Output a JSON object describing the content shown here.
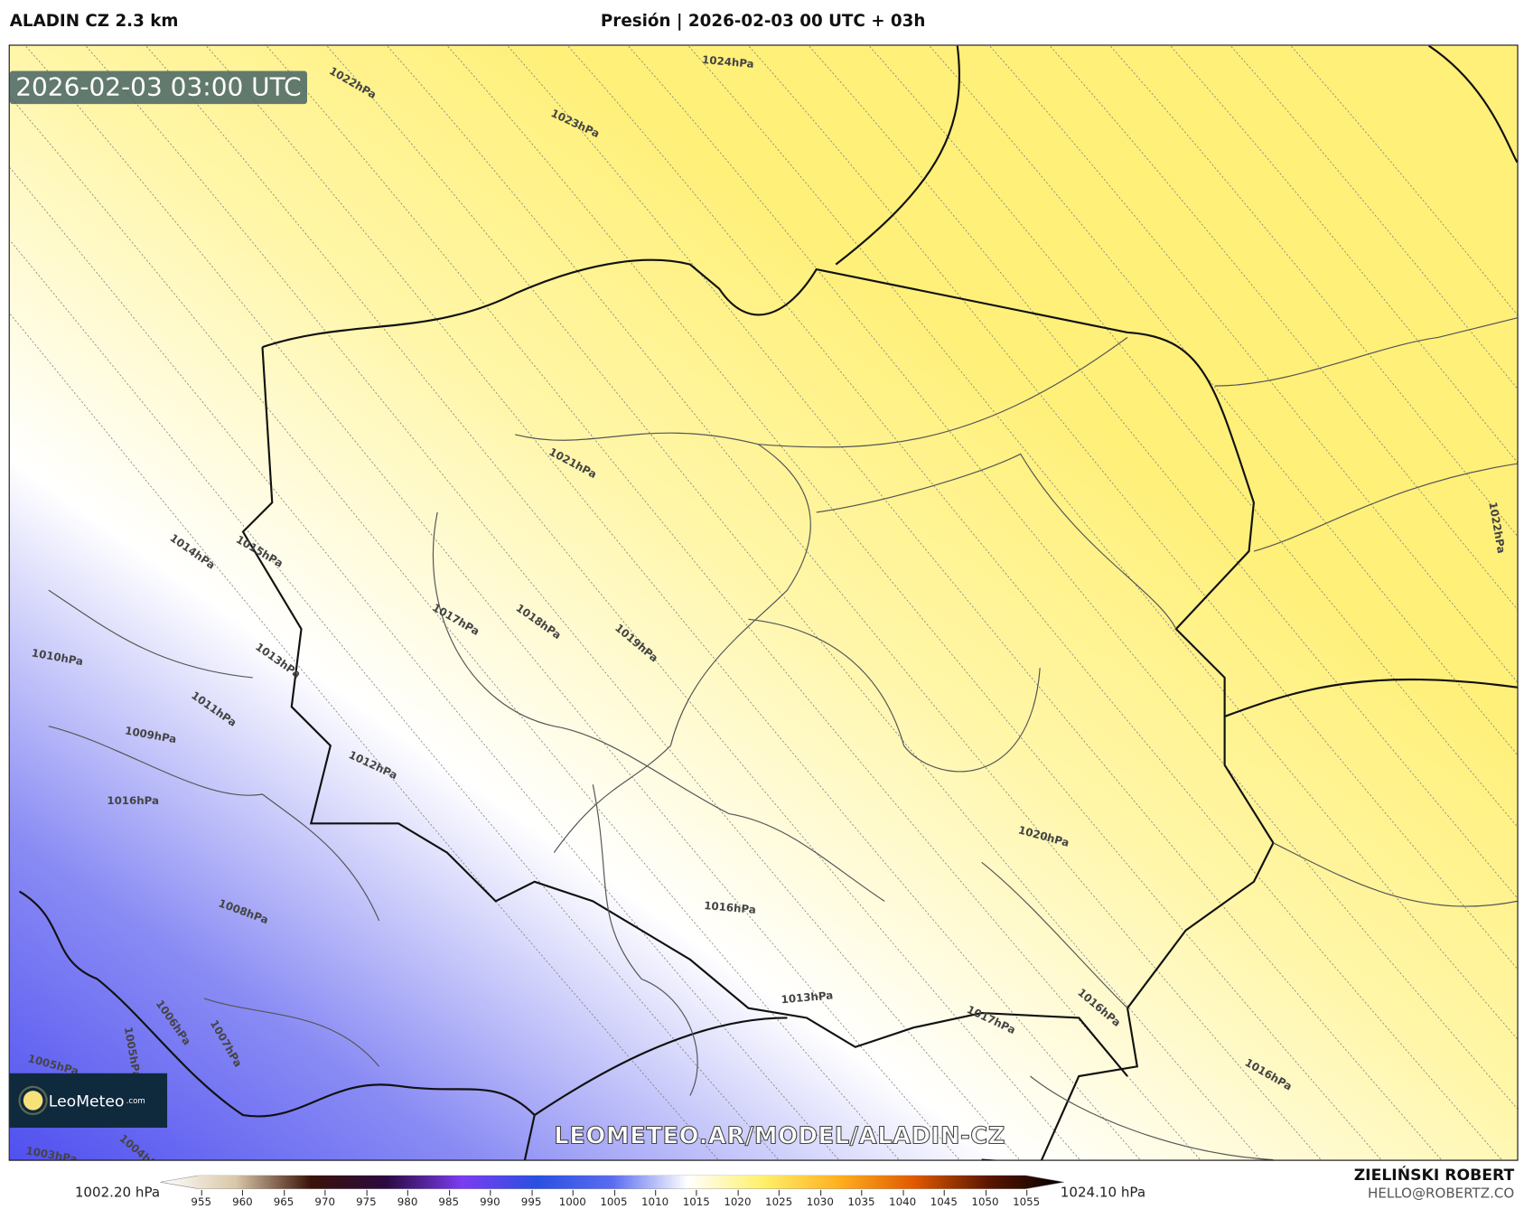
{
  "header": {
    "model": "ALADIN CZ 2.3 km",
    "title": "Presión | 2026-02-03 00 UTC + 03h"
  },
  "map": {
    "valid_time": "2026-02-03 03:00 UTC",
    "watermark": "LEOMETEO.AR/MODEL/ALADIN-CZ",
    "logo": {
      "name": "LeoMeteo",
      "suffix": ".com"
    },
    "colors": {
      "low": "#5050f0",
      "mid": "#ffffff",
      "high": "#fff07a"
    },
    "isobar_labels": [
      "1024hPa",
      "1023hPa",
      "1022hPa",
      "1021hPa",
      "1020hPa",
      "1019hPa",
      "1018hPa",
      "1017hPa",
      "1016hPa",
      "1015hPa",
      "1014hPa",
      "1013hPa",
      "1012hPa",
      "1011hPa",
      "1010hPa",
      "1009hPa",
      "1008hPa",
      "1007hPa",
      "1006hPa",
      "1005hPa",
      "1005hPa",
      "1004hPa",
      "1003hPa",
      "1022hPa",
      "1016hPa",
      "1013hPa",
      "1017hPa",
      "1016hPa",
      "1016hPa"
    ]
  },
  "colorbar": {
    "min_label": "1002.20 hPa",
    "max_label": "1024.10 hPa",
    "ticks": [
      "955",
      "960",
      "965",
      "970",
      "975",
      "980",
      "985",
      "990",
      "995",
      "1000",
      "1005",
      "1010",
      "1015",
      "1020",
      "1025",
      "1030",
      "1035",
      "1040",
      "1045",
      "1050",
      "1055"
    ],
    "stops": [
      "#ffffff",
      "#d9c7a8",
      "#3a1208",
      "#2a0a40",
      "#7b3cf0",
      "#2a50e0",
      "#5a6cf0",
      "#ffffff",
      "#fff06a",
      "#ffb020",
      "#e05a00",
      "#5a1500",
      "#000000"
    ]
  },
  "author": {
    "name": "ZIELIŃSKI ROBERT",
    "email": "HELLO@ROBERTZ.CO"
  }
}
